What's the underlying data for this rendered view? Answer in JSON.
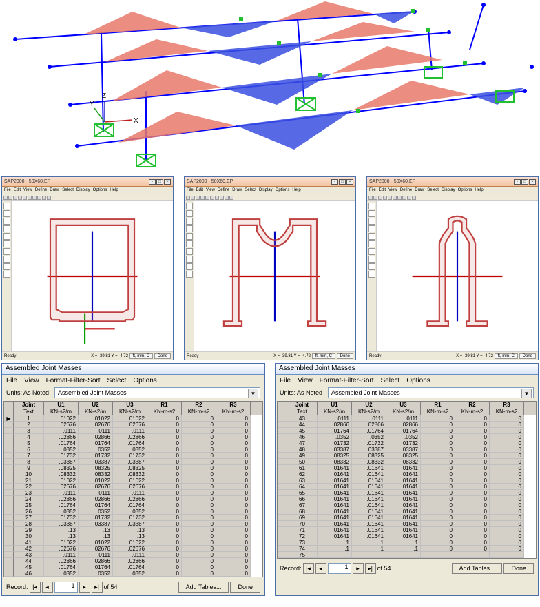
{
  "model3d": {
    "background": "#ffffff",
    "beam_color": "#0000ff",
    "node_color": "#0000ff",
    "moment_top_color": "#e86a5a",
    "moment_bot_color": "#2948d6",
    "support_color": "#22c031",
    "axis_x_color": "#c02020",
    "axis_y_color": "#20a020",
    "axis_z_color": "#2020c0",
    "axis_origin_label_x": "X",
    "axis_origin_label_y": "Y",
    "axis_origin_label_z": "Z"
  },
  "section_windows": {
    "titlebar_left": "SAP2000 - 50X60.EP",
    "menus": [
      "File",
      "Edit",
      "View",
      "Define",
      "Draw",
      "Select",
      "Display",
      "Options",
      "Help"
    ],
    "status_left": "Ready",
    "status_coords": "X = -39.81   Y = -4.72",
    "status_units": "ft, mm, C",
    "done_label": "Done",
    "shape_fill": "rgba(210,130,130,0.18)",
    "shape_stroke": "#c04040",
    "axis_x": "#00a000",
    "axis_y": "#0000c0",
    "axis_z": "#c00000"
  },
  "tables": {
    "title": "Assembled Joint Masses",
    "menus": [
      "File",
      "View",
      "Format-Filter-Sort",
      "Select",
      "Options"
    ],
    "units_label": "Units:  As Noted",
    "dropdown_value": "Assembled Joint Masses",
    "columns": [
      {
        "h1": "",
        "h2": ""
      },
      {
        "h1": "Joint",
        "h2": "Text"
      },
      {
        "h1": "U1",
        "h2": "KN-s2/m"
      },
      {
        "h1": "U2",
        "h2": "KN-s2/m"
      },
      {
        "h1": "U3",
        "h2": "KN-s2/m"
      },
      {
        "h1": "R1",
        "h2": "KN-m-s2"
      },
      {
        "h1": "R2",
        "h2": "KN-m-s2"
      },
      {
        "h1": "R3",
        "h2": "KN-m-s2"
      }
    ],
    "footer": {
      "record_label": "Record:",
      "current": "1",
      "of_label": "of 54",
      "add_tables": "Add Tables...",
      "done": "Done"
    },
    "left_rows": [
      [
        "1",
        ".01022",
        ".01022",
        ".01022",
        "0",
        "0",
        "0"
      ],
      [
        "2",
        ".02676",
        ".02676",
        ".02676",
        "0",
        "0",
        "0"
      ],
      [
        "3",
        ".0111",
        ".0111",
        ".0111",
        "0",
        "0",
        "0"
      ],
      [
        "4",
        ".02866",
        ".02866",
        ".02866",
        "0",
        "0",
        "0"
      ],
      [
        "5",
        ".01764",
        ".01764",
        ".01764",
        "0",
        "0",
        "0"
      ],
      [
        "6",
        ".0352",
        ".0352",
        ".0352",
        "0",
        "0",
        "0"
      ],
      [
        "7",
        ".01732",
        ".01732",
        ".01732",
        "0",
        "0",
        "0"
      ],
      [
        "8",
        ".03387",
        ".03387",
        ".03387",
        "0",
        "0",
        "0"
      ],
      [
        "9",
        ".08325",
        ".08325",
        ".08325",
        "0",
        "0",
        "0"
      ],
      [
        "10",
        ".08332",
        ".08332",
        ".08332",
        "0",
        "0",
        "0"
      ],
      [
        "21",
        ".01022",
        ".01022",
        ".01022",
        "0",
        "0",
        "0"
      ],
      [
        "22",
        ".02676",
        ".02676",
        ".02676",
        "0",
        "0",
        "0"
      ],
      [
        "23",
        ".0111",
        ".0111",
        ".0111",
        "0",
        "0",
        "0"
      ],
      [
        "24",
        ".02866",
        ".02866",
        ".02866",
        "0",
        "0",
        "0"
      ],
      [
        "25",
        ".01764",
        ".01764",
        ".01764",
        "0",
        "0",
        "0"
      ],
      [
        "26",
        ".0352",
        ".0352",
        ".0352",
        "0",
        "0",
        "0"
      ],
      [
        "27",
        ".01732",
        ".01732",
        ".01732",
        "0",
        "0",
        "0"
      ],
      [
        "28",
        ".03387",
        ".03387",
        ".03387",
        "0",
        "0",
        "0"
      ],
      [
        "29",
        ".13",
        ".13",
        ".13",
        "0",
        "0",
        "0"
      ],
      [
        "30",
        ".13",
        ".13",
        ".13",
        "0",
        "0",
        "0"
      ],
      [
        "41",
        ".01022",
        ".01022",
        ".01022",
        "0",
        "0",
        "0"
      ],
      [
        "42",
        ".02676",
        ".02676",
        ".02676",
        "0",
        "0",
        "0"
      ],
      [
        "43",
        ".0111",
        ".0111",
        ".0111",
        "0",
        "0",
        "0"
      ],
      [
        "44",
        ".02866",
        ".02866",
        ".02866",
        "0",
        "0",
        "0"
      ],
      [
        "45",
        ".01764",
        ".01764",
        ".01764",
        "0",
        "0",
        "0"
      ],
      [
        "46",
        ".0352",
        ".0352",
        ".0352",
        "0",
        "0",
        "0"
      ]
    ],
    "right_rows": [
      [
        "43",
        ".0111",
        ".0111",
        ".0111",
        "0",
        "0",
        "0"
      ],
      [
        "44",
        ".02866",
        ".02866",
        ".02866",
        "0",
        "0",
        "0"
      ],
      [
        "45",
        ".01764",
        ".01764",
        ".01764",
        "0",
        "0",
        "0"
      ],
      [
        "46",
        ".0352",
        ".0352",
        ".0352",
        "0",
        "0",
        "0"
      ],
      [
        "47",
        ".01732",
        ".01732",
        ".01732",
        "0",
        "0",
        "0"
      ],
      [
        "48",
        ".03387",
        ".03387",
        ".03387",
        "0",
        "0",
        "0"
      ],
      [
        "49",
        ".08325",
        ".08325",
        ".08325",
        "0",
        "0",
        "0"
      ],
      [
        "50",
        ".08332",
        ".08332",
        ".08332",
        "0",
        "0",
        "0"
      ],
      [
        "61",
        ".01641",
        ".01641",
        ".01641",
        "0",
        "0",
        "0"
      ],
      [
        "62",
        ".01641",
        ".01641",
        ".01641",
        "0",
        "0",
        "0"
      ],
      [
        "63",
        ".01641",
        ".01641",
        ".01641",
        "0",
        "0",
        "0"
      ],
      [
        "64",
        ".01641",
        ".01641",
        ".01641",
        "0",
        "0",
        "0"
      ],
      [
        "65",
        ".01641",
        ".01641",
        ".01641",
        "0",
        "0",
        "0"
      ],
      [
        "66",
        ".01641",
        ".01641",
        ".01641",
        "0",
        "0",
        "0"
      ],
      [
        "67",
        ".01641",
        ".01641",
        ".01641",
        "0",
        "0",
        "0"
      ],
      [
        "68",
        ".01641",
        ".01641",
        ".01641",
        "0",
        "0",
        "0"
      ],
      [
        "69",
        ".01641",
        ".01641",
        ".01641",
        "0",
        "0",
        "0"
      ],
      [
        "70",
        ".01641",
        ".01641",
        ".01641",
        "0",
        "0",
        "0"
      ],
      [
        "71",
        ".01641",
        ".01641",
        ".01641",
        "0",
        "0",
        "0"
      ],
      [
        "72",
        ".01641",
        ".01641",
        ".01641",
        "0",
        "0",
        "0"
      ],
      [
        "73",
        ".1",
        ".1",
        ".1",
        "0",
        "0",
        "0"
      ],
      [
        "74",
        ".1",
        ".1",
        ".1",
        "0",
        "0",
        "0"
      ],
      [
        "75",
        "",
        "",
        "",
        "",
        "",
        ""
      ]
    ]
  }
}
